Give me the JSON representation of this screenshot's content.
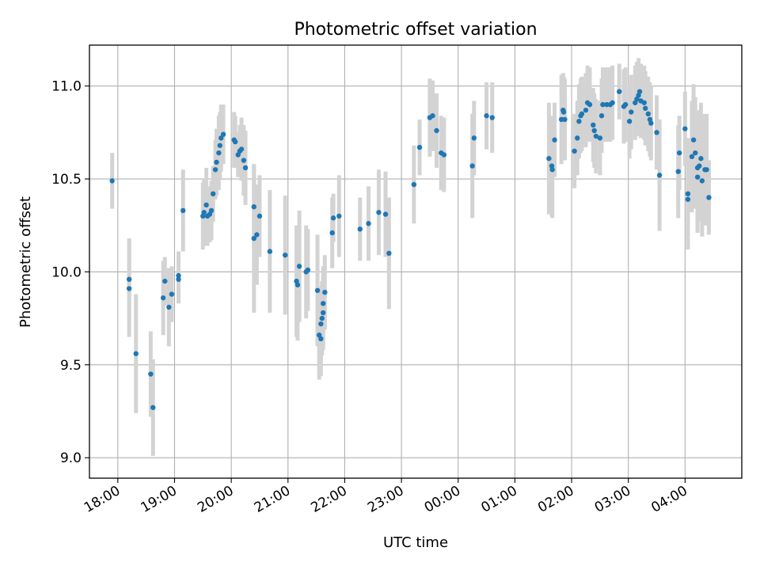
{
  "chart_data": {
    "type": "scatter",
    "title": "Photometric offset variation",
    "xlabel": "UTC time",
    "ylabel": "Photometric offset",
    "grid": true,
    "xlim": [
      17.5,
      29.0
    ],
    "ylim": [
      8.89,
      11.22
    ],
    "x_ticks": [
      {
        "value": 18,
        "label": "18:00"
      },
      {
        "value": 19,
        "label": "19:00"
      },
      {
        "value": 20,
        "label": "20:00"
      },
      {
        "value": 21,
        "label": "21:00"
      },
      {
        "value": 22,
        "label": "22:00"
      },
      {
        "value": 23,
        "label": "23:00"
      },
      {
        "value": 24,
        "label": "00:00"
      },
      {
        "value": 25,
        "label": "01:00"
      },
      {
        "value": 26,
        "label": "02:00"
      },
      {
        "value": 27,
        "label": "03:00"
      },
      {
        "value": 28,
        "label": "04:00"
      }
    ],
    "y_ticks": [
      {
        "value": 9.0,
        "label": "9.0"
      },
      {
        "value": 9.5,
        "label": "9.5"
      },
      {
        "value": 10.0,
        "label": "10.0"
      },
      {
        "value": 10.5,
        "label": "10.5"
      },
      {
        "value": 11.0,
        "label": "11.0"
      }
    ],
    "colors": {
      "point": "#1f77b4",
      "errorbar": "#d3d3d3",
      "grid": "#b0b0b0",
      "axis": "#000000"
    },
    "points": [
      [
        17.9,
        10.49,
        0.15
      ],
      [
        18.2,
        9.96,
        0.22
      ],
      [
        18.2,
        9.91,
        0.26
      ],
      [
        18.32,
        9.56,
        0.32
      ],
      [
        18.58,
        9.45,
        0.23
      ],
      [
        18.62,
        9.27,
        0.26
      ],
      [
        18.8,
        9.86,
        0.2
      ],
      [
        18.83,
        9.95,
        0.13
      ],
      [
        18.9,
        9.81,
        0.21
      ],
      [
        18.95,
        9.88,
        0.15
      ],
      [
        19.07,
        9.96,
        0.13
      ],
      [
        19.07,
        9.98,
        0.13
      ],
      [
        19.15,
        10.33,
        0.22
      ],
      [
        19.5,
        10.3,
        0.18
      ],
      [
        19.52,
        10.32,
        0.18
      ],
      [
        19.56,
        10.36,
        0.2
      ],
      [
        19.58,
        10.3,
        0.16
      ],
      [
        19.62,
        10.31,
        0.15
      ],
      [
        19.65,
        10.33,
        0.16
      ],
      [
        19.68,
        10.42,
        0.15
      ],
      [
        19.72,
        10.55,
        0.16
      ],
      [
        19.74,
        10.59,
        0.18
      ],
      [
        19.78,
        10.64,
        0.2
      ],
      [
        19.8,
        10.68,
        0.18
      ],
      [
        19.82,
        10.72,
        0.18
      ],
      [
        19.86,
        10.74,
        0.16
      ],
      [
        20.05,
        10.71,
        0.15
      ],
      [
        20.07,
        10.7,
        0.14
      ],
      [
        20.12,
        10.63,
        0.12
      ],
      [
        20.15,
        10.65,
        0.14
      ],
      [
        20.18,
        10.66,
        0.17
      ],
      [
        20.22,
        10.6,
        0.19
      ],
      [
        20.25,
        10.56,
        0.2
      ],
      [
        20.4,
        10.35,
        0.22
      ],
      [
        20.4,
        10.18,
        0.4
      ],
      [
        20.45,
        10.2,
        0.27
      ],
      [
        20.5,
        10.3,
        0.22
      ],
      [
        20.68,
        10.11,
        0.33
      ],
      [
        20.95,
        10.09,
        0.32
      ],
      [
        21.15,
        9.95,
        0.3
      ],
      [
        21.17,
        9.93,
        0.3
      ],
      [
        21.2,
        10.03,
        0.3
      ],
      [
        21.32,
        10.0,
        0.25
      ],
      [
        21.35,
        10.01,
        0.22
      ],
      [
        21.52,
        9.9,
        0.3
      ],
      [
        21.55,
        9.66,
        0.24
      ],
      [
        21.58,
        9.64,
        0.2
      ],
      [
        21.58,
        9.72,
        0.2
      ],
      [
        21.6,
        9.75,
        0.2
      ],
      [
        21.62,
        9.78,
        0.2
      ],
      [
        21.62,
        9.83,
        0.2
      ],
      [
        21.65,
        9.89,
        0.2
      ],
      [
        21.78,
        10.21,
        0.19
      ],
      [
        21.8,
        10.29,
        0.13
      ],
      [
        21.9,
        10.3,
        0.22
      ],
      [
        22.27,
        10.23,
        0.17
      ],
      [
        22.42,
        10.26,
        0.2
      ],
      [
        22.6,
        10.32,
        0.23
      ],
      [
        22.72,
        10.31,
        0.23
      ],
      [
        22.78,
        10.1,
        0.3
      ],
      [
        23.22,
        10.47,
        0.21
      ],
      [
        23.32,
        10.67,
        0.15
      ],
      [
        23.5,
        10.83,
        0.21
      ],
      [
        23.55,
        10.84,
        0.19
      ],
      [
        23.62,
        10.76,
        0.2
      ],
      [
        23.7,
        10.64,
        0.2
      ],
      [
        23.75,
        10.63,
        0.2
      ],
      [
        24.25,
        10.57,
        0.28
      ],
      [
        24.28,
        10.72,
        0.2
      ],
      [
        24.5,
        10.84,
        0.18
      ],
      [
        24.6,
        10.83,
        0.19
      ],
      [
        25.6,
        10.61,
        0.3
      ],
      [
        25.65,
        10.57,
        0.27
      ],
      [
        25.66,
        10.55,
        0.26
      ],
      [
        25.7,
        10.71,
        0.2
      ],
      [
        25.82,
        10.82,
        0.24
      ],
      [
        25.85,
        10.87,
        0.2
      ],
      [
        25.86,
        10.86,
        0.19
      ],
      [
        25.88,
        10.82,
        0.22
      ],
      [
        26.05,
        10.65,
        0.2
      ],
      [
        26.1,
        10.72,
        0.2
      ],
      [
        26.13,
        10.81,
        0.2
      ],
      [
        26.16,
        10.84,
        0.2
      ],
      [
        26.18,
        10.85,
        0.2
      ],
      [
        26.25,
        10.87,
        0.2
      ],
      [
        26.28,
        10.91,
        0.2
      ],
      [
        26.32,
        10.9,
        0.2
      ],
      [
        26.38,
        10.79,
        0.2
      ],
      [
        26.4,
        10.76,
        0.2
      ],
      [
        26.43,
        10.73,
        0.2
      ],
      [
        26.5,
        10.72,
        0.2
      ],
      [
        26.53,
        10.84,
        0.2
      ],
      [
        26.55,
        10.9,
        0.2
      ],
      [
        26.62,
        10.9,
        0.2
      ],
      [
        26.68,
        10.9,
        0.2
      ],
      [
        26.72,
        10.91,
        0.2
      ],
      [
        26.84,
        10.97,
        0.15
      ],
      [
        26.92,
        10.89,
        0.2
      ],
      [
        26.95,
        10.9,
        0.2
      ],
      [
        27.02,
        10.81,
        0.2
      ],
      [
        27.05,
        10.86,
        0.2
      ],
      [
        27.12,
        10.91,
        0.2
      ],
      [
        27.15,
        10.93,
        0.2
      ],
      [
        27.18,
        10.95,
        0.2
      ],
      [
        27.2,
        10.97,
        0.15
      ],
      [
        27.22,
        10.92,
        0.2
      ],
      [
        27.28,
        10.91,
        0.2
      ],
      [
        27.3,
        10.88,
        0.2
      ],
      [
        27.35,
        10.85,
        0.2
      ],
      [
        27.38,
        10.82,
        0.2
      ],
      [
        27.4,
        10.8,
        0.2
      ],
      [
        27.5,
        10.75,
        0.2
      ],
      [
        27.55,
        10.52,
        0.3
      ],
      [
        27.88,
        10.54,
        0.25
      ],
      [
        27.9,
        10.64,
        0.2
      ],
      [
        28.0,
        10.77,
        0.2
      ],
      [
        28.05,
        10.39,
        0.2
      ],
      [
        28.05,
        10.42,
        0.3
      ],
      [
        28.12,
        10.62,
        0.3
      ],
      [
        28.15,
        10.71,
        0.3
      ],
      [
        28.18,
        10.64,
        0.3
      ],
      [
        28.22,
        10.51,
        0.3
      ],
      [
        28.22,
        10.56,
        0.3
      ],
      [
        28.25,
        10.57,
        0.3
      ],
      [
        28.28,
        10.61,
        0.3
      ],
      [
        28.3,
        10.49,
        0.3
      ],
      [
        28.35,
        10.55,
        0.3
      ],
      [
        28.38,
        10.55,
        0.3
      ],
      [
        28.42,
        10.4,
        0.2
      ]
    ]
  }
}
